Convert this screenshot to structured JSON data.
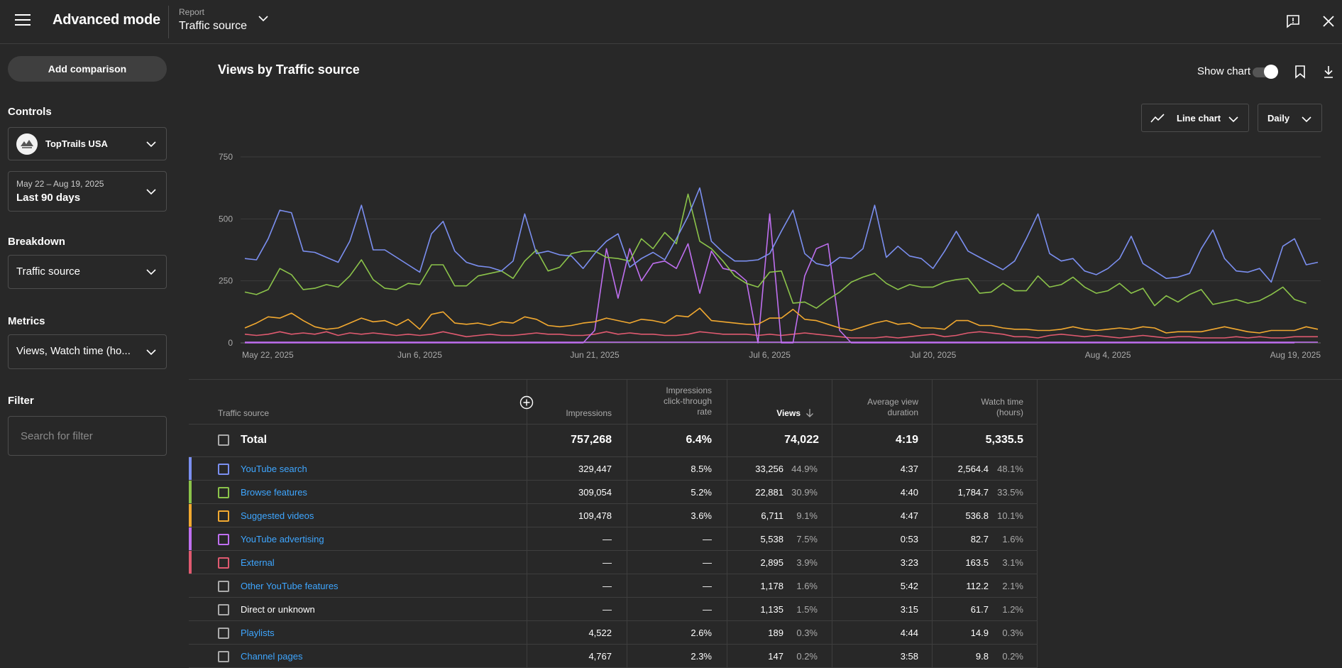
{
  "app": {
    "title": "Advanced mode"
  },
  "report": {
    "label": "Report",
    "value": "Traffic source"
  },
  "sidebar": {
    "add_comparison": "Add comparison",
    "controls_heading": "Controls",
    "channel_name": "TopTrails USA",
    "date_range": "May 22 – Aug 19, 2025",
    "date_preset": "Last 90 days",
    "breakdown_heading": "Breakdown",
    "breakdown_value": "Traffic source",
    "metrics_heading": "Metrics",
    "metrics_value": "Views, Watch time (ho...",
    "filter_heading": "Filter",
    "filter_placeholder": "Search for filter"
  },
  "chart_header": {
    "title": "Views by Traffic source",
    "show_chart_label": "Show chart",
    "show_chart_on": true,
    "chart_type": "Line chart",
    "period": "Daily"
  },
  "chart_data": {
    "type": "line",
    "ylim": [
      0,
      750
    ],
    "yticks": [
      "0",
      "250",
      "500",
      "750"
    ],
    "x_start": "May 22, 2025",
    "x_end": "Aug 19, 2025",
    "xtick_labels": [
      {
        "label": "May 22, 2025",
        "day": 0
      },
      {
        "label": "Jun 6, 2025",
        "day": 15
      },
      {
        "label": "Jun 21, 2025",
        "day": 30
      },
      {
        "label": "Jul 6, 2025",
        "day": 45
      },
      {
        "label": "Jul 20, 2025",
        "day": 59
      },
      {
        "label": "Aug 4, 2025",
        "day": 74
      },
      {
        "label": "Aug 19, 2025",
        "day": 89
      }
    ],
    "grid": true,
    "series": [
      {
        "name": "YouTube search",
        "color": "#7b8ff0",
        "values": [
          340,
          335,
          420,
          535,
          525,
          370,
          365,
          345,
          325,
          410,
          555,
          375,
          375,
          345,
          315,
          285,
          440,
          490,
          370,
          325,
          310,
          305,
          290,
          330,
          520,
          360,
          370,
          355,
          350,
          300,
          360,
          410,
          440,
          305,
          340,
          365,
          335,
          420,
          510,
          625,
          410,
          365,
          330,
          330,
          335,
          360,
          450,
          535,
          360,
          320,
          310,
          345,
          340,
          380,
          555,
          345,
          390,
          350,
          340,
          300,
          370,
          450,
          370,
          345,
          320,
          295,
          330,
          420,
          520,
          360,
          330,
          340,
          290,
          275,
          300,
          340,
          430,
          320,
          290,
          260,
          265,
          280,
          380,
          455,
          340,
          290,
          285,
          300,
          245,
          390,
          420,
          315,
          325
        ]
      },
      {
        "name": "Browse features",
        "color": "#8bc34a",
        "values": [
          205,
          195,
          215,
          300,
          275,
          215,
          220,
          235,
          225,
          270,
          335,
          255,
          220,
          215,
          240,
          235,
          315,
          315,
          230,
          230,
          270,
          280,
          290,
          260,
          330,
          375,
          290,
          305,
          360,
          370,
          370,
          345,
          340,
          330,
          420,
          380,
          445,
          400,
          600,
          410,
          380,
          330,
          270,
          240,
          225,
          285,
          290,
          160,
          165,
          140,
          175,
          205,
          245,
          265,
          280,
          240,
          215,
          235,
          225,
          225,
          245,
          255,
          260,
          200,
          205,
          240,
          210,
          210,
          270,
          225,
          235,
          265,
          225,
          200,
          210,
          240,
          200,
          220,
          150,
          190,
          165,
          195,
          215,
          155,
          165,
          175,
          160,
          170,
          195,
          225,
          175,
          160
        ]
      },
      {
        "name": "Suggested videos",
        "color": "#f2a930",
        "values": [
          60,
          80,
          105,
          100,
          120,
          90,
          65,
          55,
          60,
          80,
          100,
          85,
          90,
          70,
          95,
          55,
          115,
          125,
          80,
          75,
          80,
          70,
          85,
          80,
          105,
          95,
          70,
          65,
          70,
          80,
          85,
          100,
          90,
          80,
          95,
          90,
          80,
          110,
          105,
          140,
          90,
          85,
          80,
          75,
          75,
          100,
          100,
          135,
          95,
          90,
          75,
          60,
          50,
          65,
          80,
          90,
          75,
          80,
          60,
          60,
          55,
          90,
          90,
          70,
          70,
          60,
          55,
          55,
          50,
          50,
          55,
          65,
          55,
          50,
          55,
          60,
          55,
          65,
          60,
          40,
          45,
          45,
          45,
          55,
          65,
          55,
          45,
          40,
          50,
          50,
          50,
          65,
          55
        ]
      },
      {
        "name": "YouTube advertising",
        "color": "#bf6ff0",
        "values": [
          0,
          0,
          0,
          0,
          0,
          0,
          0,
          0,
          0,
          0,
          0,
          0,
          0,
          0,
          0,
          0,
          0,
          0,
          0,
          0,
          0,
          0,
          0,
          0,
          0,
          0,
          0,
          0,
          0,
          0,
          50,
          380,
          180,
          380,
          250,
          320,
          330,
          300,
          400,
          200,
          370,
          300,
          290,
          250,
          0,
          520,
          0,
          0,
          270,
          380,
          400,
          50,
          0,
          0,
          0,
          0,
          0,
          0,
          0,
          0,
          0,
          0,
          0,
          0,
          0,
          0,
          0,
          0,
          0,
          0,
          0,
          0,
          0,
          0,
          0,
          0,
          0,
          0,
          0,
          0,
          0,
          0,
          0,
          0,
          0,
          0,
          0,
          0,
          0,
          0,
          0
        ]
      },
      {
        "name": "External",
        "color": "#e05a70",
        "values": [
          35,
          30,
          35,
          45,
          35,
          40,
          35,
          45,
          30,
          40,
          35,
          40,
          35,
          30,
          35,
          30,
          35,
          45,
          35,
          25,
          30,
          35,
          30,
          30,
          35,
          40,
          35,
          35,
          30,
          30,
          35,
          45,
          35,
          40,
          35,
          35,
          30,
          30,
          35,
          45,
          40,
          35,
          35,
          35,
          30,
          35,
          30,
          35,
          40,
          35,
          30,
          25,
          20,
          20,
          20,
          25,
          20,
          25,
          30,
          35,
          25,
          30,
          40,
          45,
          40,
          35,
          25,
          25,
          20,
          30,
          35,
          30,
          25,
          30,
          25,
          20,
          25,
          30,
          25,
          20,
          25,
          25,
          20,
          20,
          20,
          25,
          20,
          25,
          20,
          20,
          25,
          25,
          25
        ]
      },
      {
        "name": "Other YouTube features",
        "color": "#bf6ff0",
        "values": [
          3,
          3,
          3,
          3,
          3,
          3,
          3,
          3,
          3,
          3,
          3,
          3,
          3,
          3,
          3,
          3,
          3,
          3,
          3,
          3,
          3,
          3,
          3,
          3,
          3,
          3,
          3,
          3,
          3,
          3,
          3,
          3,
          3,
          3,
          3,
          3,
          3,
          3,
          3,
          3,
          3,
          3,
          3,
          3,
          3,
          3,
          3,
          3,
          3,
          3,
          3,
          3,
          3,
          3,
          3,
          3,
          3,
          3,
          3,
          3,
          3,
          3,
          3,
          3,
          3,
          3,
          3,
          3,
          3,
          3,
          3,
          3,
          3,
          3,
          3,
          3,
          3,
          3,
          3,
          3,
          3,
          3,
          3,
          3,
          3,
          3,
          3,
          3,
          3,
          3,
          3,
          3,
          3
        ]
      }
    ]
  },
  "table": {
    "headers": {
      "source": "Traffic source",
      "impressions": "Impressions",
      "ctr": [
        "Impressions",
        "click-through",
        "rate"
      ],
      "views": "Views",
      "avg_duration": [
        "Average view",
        "duration"
      ],
      "watch_time": [
        "Watch time",
        "(hours)"
      ]
    },
    "total": {
      "label": "Total",
      "impressions": "757,268",
      "ctr": "6.4%",
      "views": "74,022",
      "avg_duration": "4:19",
      "watch_time": "5,335.5"
    },
    "rows": [
      {
        "source": "YouTube search",
        "link": true,
        "color": "#7b8ff0",
        "checkbox_color": "#7b8ff0",
        "impressions": "329,447",
        "ctr": "8.5%",
        "views": "33,256",
        "views_pct": "44.9%",
        "avg_duration": "4:37",
        "watch_time": "2,564.4",
        "watch_pct": "48.1%"
      },
      {
        "source": "Browse features",
        "link": true,
        "color": "#8bc34a",
        "checkbox_color": "#8bc34a",
        "impressions": "309,054",
        "ctr": "5.2%",
        "views": "22,881",
        "views_pct": "30.9%",
        "avg_duration": "4:40",
        "watch_time": "1,784.7",
        "watch_pct": "33.5%"
      },
      {
        "source": "Suggested videos",
        "link": true,
        "color": "#f2a930",
        "checkbox_color": "#f2a930",
        "impressions": "109,478",
        "ctr": "3.6%",
        "views": "6,711",
        "views_pct": "9.1%",
        "avg_duration": "4:47",
        "watch_time": "536.8",
        "watch_pct": "10.1%"
      },
      {
        "source": "YouTube advertising",
        "link": true,
        "color": "#bf6ff0",
        "checkbox_color": "#bf6ff0",
        "impressions": "—",
        "ctr": "—",
        "views": "5,538",
        "views_pct": "7.5%",
        "avg_duration": "0:53",
        "watch_time": "82.7",
        "watch_pct": "1.6%"
      },
      {
        "source": "External",
        "link": true,
        "color": "#e05a70",
        "checkbox_color": "#e05a70",
        "impressions": "—",
        "ctr": "—",
        "views": "2,895",
        "views_pct": "3.9%",
        "avg_duration": "3:23",
        "watch_time": "163.5",
        "watch_pct": "3.1%"
      },
      {
        "source": "Other YouTube features",
        "link": true,
        "color": "",
        "checkbox_color": "#aaaaaa",
        "impressions": "—",
        "ctr": "—",
        "views": "1,178",
        "views_pct": "1.6%",
        "avg_duration": "5:42",
        "watch_time": "112.2",
        "watch_pct": "2.1%"
      },
      {
        "source": "Direct or unknown",
        "link": false,
        "color": "",
        "checkbox_color": "#aaaaaa",
        "impressions": "—",
        "ctr": "—",
        "views": "1,135",
        "views_pct": "1.5%",
        "avg_duration": "3:15",
        "watch_time": "61.7",
        "watch_pct": "1.2%"
      },
      {
        "source": "Playlists",
        "link": true,
        "color": "",
        "checkbox_color": "#aaaaaa",
        "impressions": "4,522",
        "ctr": "2.6%",
        "views": "189",
        "views_pct": "0.3%",
        "avg_duration": "4:44",
        "watch_time": "14.9",
        "watch_pct": "0.3%"
      },
      {
        "source": "Channel pages",
        "link": true,
        "color": "",
        "checkbox_color": "#aaaaaa",
        "impressions": "4,767",
        "ctr": "2.3%",
        "views": "147",
        "views_pct": "0.2%",
        "avg_duration": "3:58",
        "watch_time": "9.8",
        "watch_pct": "0.2%"
      }
    ]
  },
  "colors": {
    "background": "#282828",
    "link": "#3ea6ff",
    "border": "#3e3e3e",
    "muted": "#aaaaaa"
  }
}
